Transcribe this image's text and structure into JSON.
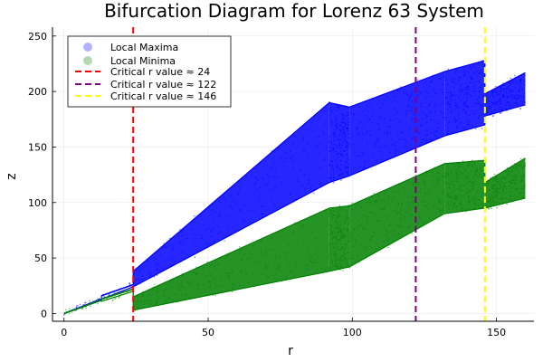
{
  "chart_data": {
    "type": "scatter",
    "title": "Bifurcation Diagram for Lorenz 63 System",
    "xlabel": "r",
    "ylabel": "z",
    "xlim": [
      -4,
      163
    ],
    "ylim": [
      -7,
      258
    ],
    "xticks": [
      0,
      50,
      100,
      150
    ],
    "yticks": [
      0,
      50,
      100,
      150,
      200,
      250
    ],
    "grid": true,
    "legend_position": "top-left",
    "series": [
      {
        "name": "Local Maxima",
        "color": "#0000ff",
        "marker": "circle",
        "bands": [
          {
            "r_start": 0,
            "r_end": 13,
            "z_low": [
              0,
              13
            ],
            "z_high": [
              0,
              13
            ]
          },
          {
            "r_start": 13,
            "r_end": 24,
            "z_low": [
              13,
              24
            ],
            "z_high": [
              16,
              26
            ]
          },
          {
            "r_start": 24,
            "r_end": 92,
            "z_low": [
              24,
              118
            ],
            "z_high": [
              38,
              190
            ]
          },
          {
            "r_start": 92,
            "r_end": 99,
            "z_low": [
              118,
              124
            ],
            "z_high": [
              190,
              186
            ]
          },
          {
            "r_start": 99,
            "r_end": 132,
            "z_low": [
              124,
              160
            ],
            "z_high": [
              186,
              218
            ]
          },
          {
            "r_start": 132,
            "r_end": 146,
            "z_low": [
              160,
              170
            ],
            "z_high": [
              218,
              228
            ]
          },
          {
            "r_start": 146,
            "r_end": 160,
            "z_low": [
              178,
              188
            ],
            "z_high": [
              198,
              217
            ]
          }
        ]
      },
      {
        "name": "Local Minima",
        "color": "#008000",
        "marker": "circle",
        "bands": [
          {
            "r_start": 0,
            "r_end": 13,
            "z_low": [
              0,
              12
            ],
            "z_high": [
              0,
              12
            ]
          },
          {
            "r_start": 13,
            "r_end": 24,
            "z_low": [
              11,
              20
            ],
            "z_high": [
              13,
              22
            ]
          },
          {
            "r_start": 24,
            "r_end": 92,
            "z_low": [
              3,
              38
            ],
            "z_high": [
              15,
              95
            ]
          },
          {
            "r_start": 92,
            "r_end": 99,
            "z_low": [
              38,
              42
            ],
            "z_high": [
              95,
              97
            ]
          },
          {
            "r_start": 99,
            "r_end": 132,
            "z_low": [
              42,
              90
            ],
            "z_high": [
              97,
              135
            ]
          },
          {
            "r_start": 132,
            "r_end": 146,
            "z_low": [
              90,
              95
            ],
            "z_high": [
              135,
              138
            ]
          },
          {
            "r_start": 146,
            "r_end": 160,
            "z_low": [
              95,
              104
            ],
            "z_high": [
              118,
              140
            ]
          }
        ]
      }
    ],
    "critical_lines": [
      {
        "label": "Critical r value ≈ 24",
        "r": 24,
        "color": "#ff0000"
      },
      {
        "label": "Critical r value ≈ 122",
        "r": 122,
        "color": "#800080"
      },
      {
        "label": "Critical r value ≈ 146",
        "r": 146,
        "color": "#ffff00"
      }
    ]
  }
}
